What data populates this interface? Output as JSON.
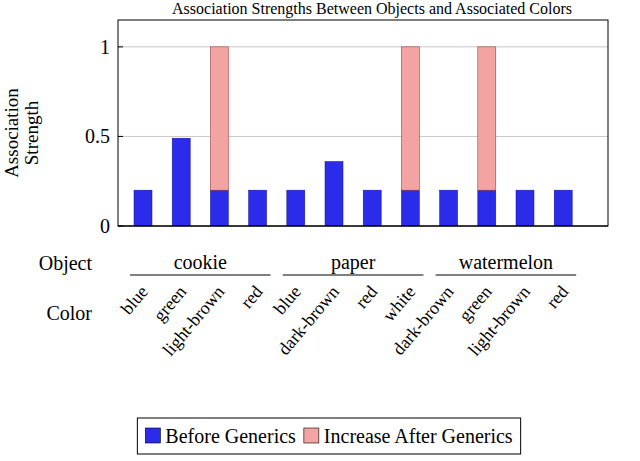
{
  "chart_data": {
    "type": "bar",
    "stacked": true,
    "grid": true,
    "legend": "bottom",
    "title": "Association Strengths Between Objects and Associated Colors",
    "y_label": "Association Strength",
    "group_label": "Object",
    "x_label": "Color",
    "groups": [
      {
        "label": "cookie",
        "size": 4
      },
      {
        "label": "paper",
        "size": 4
      },
      {
        "label": "watermelon",
        "size": 4
      }
    ],
    "categories": [
      "blue",
      "green",
      "light-brown",
      "red",
      "blue",
      "dark-brown",
      "red",
      "white",
      "dark-brown",
      "green",
      "light-brown",
      "red"
    ],
    "series": [
      {
        "name": "Before Generics",
        "color": "#2b2bea",
        "values": [
          0.2,
          0.49,
          0.2,
          0.2,
          0.2,
          0.36,
          0.2,
          0.2,
          0.2,
          0.2,
          0.2,
          0.2
        ]
      },
      {
        "name": "Increase After Generics",
        "color": "#f4a3a3",
        "values": [
          0,
          0,
          0.8,
          0,
          0,
          0,
          0,
          0.8,
          0,
          0.8,
          0,
          0
        ]
      }
    ],
    "ylim": [
      0,
      1.15
    ],
    "yticks": [
      0,
      0.5,
      1
    ]
  }
}
